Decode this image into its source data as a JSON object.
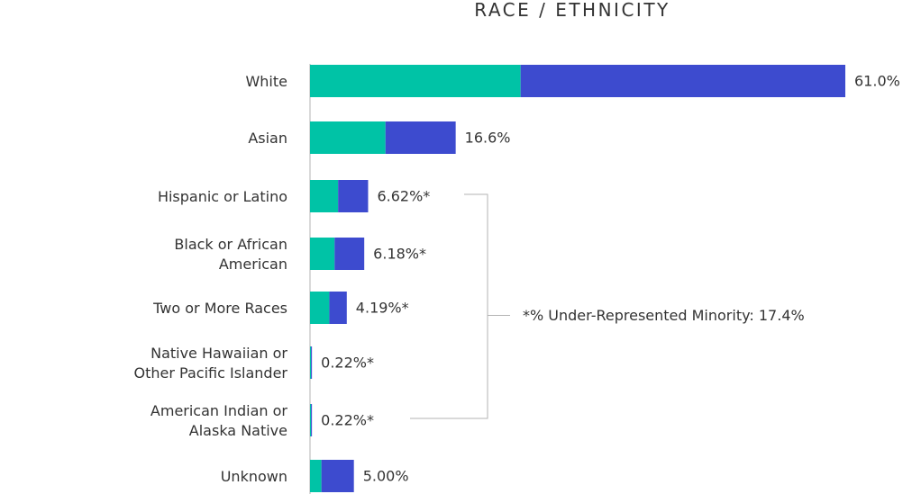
{
  "chart_data": {
    "type": "bar",
    "orientation": "horizontal",
    "stacked": true,
    "title": "RACE / ETHNICITY",
    "categories": [
      [
        "White"
      ],
      [
        "Asian"
      ],
      [
        "Hispanic or Latino"
      ],
      [
        "Black or African",
        "American"
      ],
      [
        "Two or More Races"
      ],
      [
        "Native Hawaiian or",
        "Other Pacific Islander"
      ],
      [
        "American Indian or",
        "Alaska Native"
      ],
      [
        "Unknown"
      ]
    ],
    "values": [
      61.0,
      16.6,
      6.62,
      6.18,
      4.19,
      0.22,
      0.22,
      5.0
    ],
    "value_labels": [
      "61.0%",
      "16.6%",
      "6.62%*",
      "6.18%*",
      "4.19%*",
      "0.22%*",
      "0.22%*",
      "5.00%"
    ],
    "series": [
      {
        "values": [
          24.0,
          8.6,
          3.2,
          2.8,
          2.2,
          0.11,
          0.11,
          1.3
        ],
        "color": "#00c3a6"
      },
      {
        "values": [
          37.0,
          8.0,
          3.42,
          3.38,
          1.99,
          0.11,
          0.11,
          3.7
        ],
        "color": "#3d4bcf"
      }
    ],
    "xlim": [
      0,
      61.0
    ],
    "grid": false,
    "bracket": {
      "from_index": 2,
      "to_index": 6,
      "label": "*% Under-Represented Minority: 17.4%",
      "color": "#b3b3b3"
    },
    "axis_color": "#b3b3b3"
  }
}
